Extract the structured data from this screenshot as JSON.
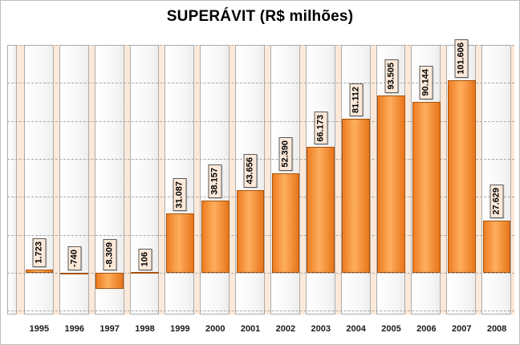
{
  "page": {
    "background": "#FFFFFF",
    "frame_border": "#BFBFBF"
  },
  "chart_data": {
    "type": "bar",
    "title": "SUPERÁVIT (R$ milhões)",
    "categories": [
      "1995",
      "1996",
      "1997",
      "1998",
      "1999",
      "2000",
      "2001",
      "2002",
      "2003",
      "2004",
      "2005",
      "2006",
      "2007",
      "2008"
    ],
    "values": [
      1723,
      -740,
      -8309,
      106,
      31087,
      38157,
      43656,
      52390,
      66173,
      81112,
      93505,
      90144,
      101606,
      27629
    ],
    "value_labels": [
      "1.723",
      "-740",
      "-8.309",
      "106",
      "31.087",
      "38.157",
      "43.656",
      "52.390",
      "66.173",
      "81.112",
      "93.505",
      "90.144",
      "101.606",
      "27.629"
    ],
    "xlabel": "",
    "ylabel": "",
    "ylim": [
      -22000,
      120000
    ],
    "grid_step": 20000,
    "grid_style": "dashed-horizontal",
    "legend": "none",
    "y_axis_tick_labels": "none",
    "styles": {
      "bar_fill_left": "#EE7D22",
      "bar_fill_mid": "#FDAE5E",
      "bar_fill_right": "#E8751A",
      "bar_border": "#A6520A",
      "value_label_bg": "#FDE9D9",
      "value_label_border": "#595959",
      "value_label_text": "#000000",
      "plot_background": "#FDE9D9",
      "column_track_bg": "#FFFFFF",
      "column_track_border": "#ADADAD",
      "gridline_color": "#A8A8A8",
      "title_color": "#000000",
      "year_label_color": "#1A1A1A"
    }
  }
}
